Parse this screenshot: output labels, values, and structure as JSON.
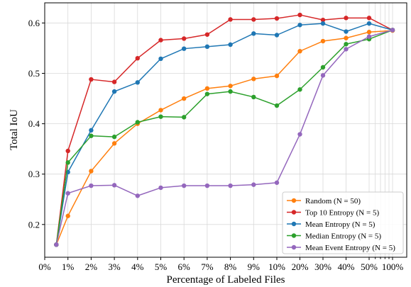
{
  "chart_data": {
    "type": "line",
    "title": "",
    "xlabel": "Percentage of Labeled Files",
    "ylabel": "Total IoU",
    "x_tick_labels": [
      "0%",
      "1%",
      "2%",
      "3%",
      "4%",
      "5%",
      "6%",
      "7%",
      "8%",
      "9%",
      "10%",
      "20%",
      "30%",
      "40%",
      "50%",
      "100%"
    ],
    "x_tick_values": [
      0,
      1,
      2,
      3,
      4,
      5,
      6,
      7,
      8,
      9,
      10,
      20,
      30,
      40,
      50,
      100
    ],
    "x_scale": "piecewise: linear 0-10%, then linear 10-50%, then logarithmic 50-100% (compressed, gridlines at 60-90%)",
    "y_ticks": [
      0.2,
      0.3,
      0.4,
      0.5,
      0.6
    ],
    "ylim": [
      0.135,
      0.64
    ],
    "grid": true,
    "legend_position": "lower-right",
    "x": [
      0.5,
      1,
      2,
      3,
      4,
      5,
      6,
      7,
      8,
      9,
      10,
      20,
      30,
      40,
      50,
      100
    ],
    "series": [
      {
        "name": "Random (N = 50)",
        "color": "#ff7f0e",
        "values": [
          0.16,
          0.217,
          0.306,
          0.361,
          0.4,
          0.427,
          0.45,
          0.47,
          0.475,
          0.489,
          0.495,
          0.544,
          0.564,
          0.57,
          0.582,
          0.585
        ]
      },
      {
        "name": "Top 10 Entropy (N = 5)",
        "color": "#d62728",
        "values": [
          0.16,
          0.346,
          0.488,
          0.483,
          0.53,
          0.566,
          0.569,
          0.577,
          0.607,
          0.607,
          0.609,
          0.616,
          0.606,
          0.61,
          0.61,
          0.586
        ]
      },
      {
        "name": "Mean Entropy (N = 5)",
        "color": "#1f77b4",
        "values": [
          0.16,
          0.304,
          0.387,
          0.464,
          0.482,
          0.529,
          0.549,
          0.553,
          0.557,
          0.579,
          0.576,
          0.596,
          0.599,
          0.583,
          0.599,
          0.586
        ]
      },
      {
        "name": "Median Entropy (N = 5)",
        "color": "#2ca02c",
        "values": [
          0.16,
          0.323,
          0.376,
          0.374,
          0.403,
          0.414,
          0.413,
          0.459,
          0.464,
          0.453,
          0.436,
          0.468,
          0.512,
          0.558,
          0.568,
          0.586
        ]
      },
      {
        "name": "Mean Event Entropy (N = 5)",
        "color": "#9467bd",
        "values": [
          0.16,
          0.262,
          0.277,
          0.278,
          0.257,
          0.273,
          0.277,
          0.277,
          0.277,
          0.279,
          0.283,
          0.379,
          0.496,
          0.548,
          0.573,
          0.586
        ]
      }
    ]
  }
}
